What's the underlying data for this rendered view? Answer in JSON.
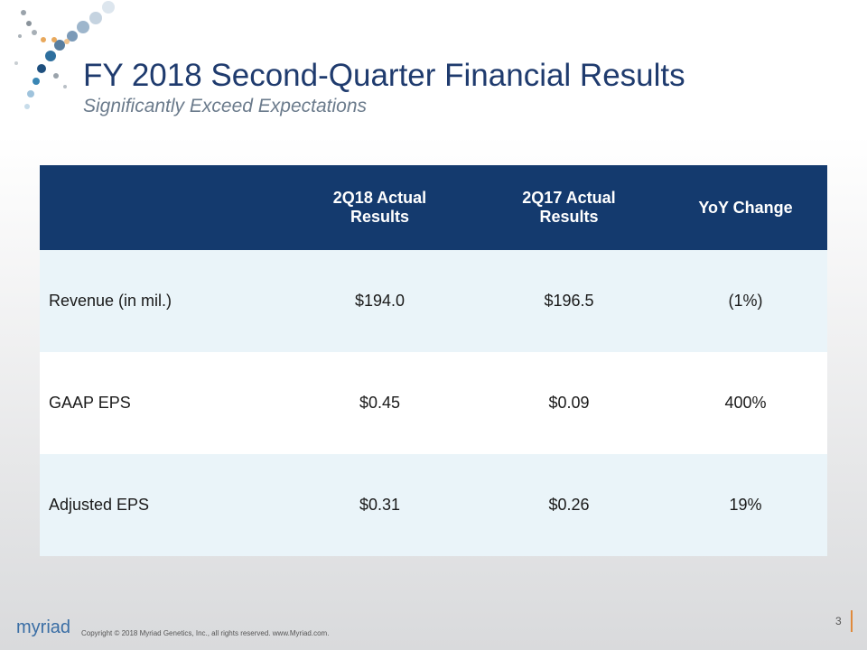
{
  "header": {
    "title": "FY 2018 Second-Quarter Financial Results",
    "subtitle": "Significantly Exceed Expectations"
  },
  "table": {
    "columns": [
      "2Q18 Actual Results",
      "2Q17 Actual Results",
      "YoY Change"
    ],
    "rows": [
      [
        "Revenue (in mil.)",
        "$194.0",
        "$196.5",
        "(1%)"
      ],
      [
        "GAAP EPS",
        "$0.45",
        "$0.09",
        "400%"
      ],
      [
        "Adjusted EPS",
        "$0.31",
        "$0.26",
        "19%"
      ]
    ]
  },
  "footer": {
    "logo": "myriad",
    "copyright": "Copyright © 2018  Myriad Genetics, Inc., all rights reserved.  www.Myriad.com.",
    "page": "3"
  }
}
